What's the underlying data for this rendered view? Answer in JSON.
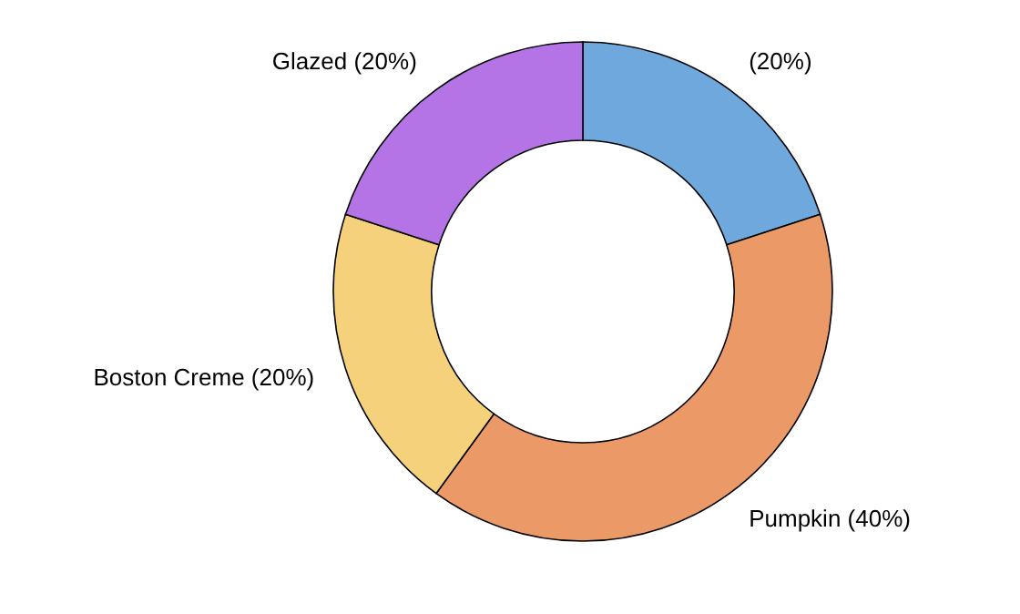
{
  "chart_data": {
    "type": "donut",
    "categories": [
      null,
      "Pumpkin",
      "Boston Creme",
      "Glazed"
    ],
    "values": [
      20,
      40,
      20,
      20
    ],
    "value_labels": [
      "(20%)",
      "(40%)",
      "(20%)",
      "(20%)"
    ],
    "colors": [
      "#6fa8dc",
      "#eb9966",
      "#f5d17c",
      "#b574e6"
    ]
  }
}
